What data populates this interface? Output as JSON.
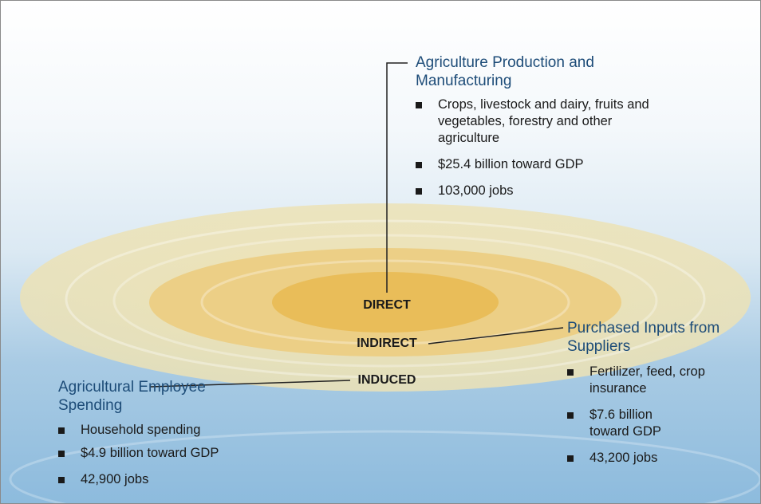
{
  "rings": [
    {
      "label": "DIRECT"
    },
    {
      "label": "INDIRECT"
    },
    {
      "label": "INDUCED"
    }
  ],
  "sections": [
    {
      "title": "Agriculture Production and Manufacturing",
      "bullets": [
        "Crops, livestock and dairy, fruits and vegetables, forestry and other agriculture",
        "$25.4 billion toward GDP",
        "103,000 jobs"
      ]
    },
    {
      "title": "Purchased Inputs from Suppliers",
      "bullets": [
        "Fertilizer, feed, crop insurance",
        "$7.6 billion toward GDP",
        "43,200 jobs"
      ]
    },
    {
      "title": "Agricultural Employee Spending",
      "bullets": [
        "Household spending",
        "$4.9 billion toward GDP",
        "42,900 jobs"
      ]
    }
  ]
}
